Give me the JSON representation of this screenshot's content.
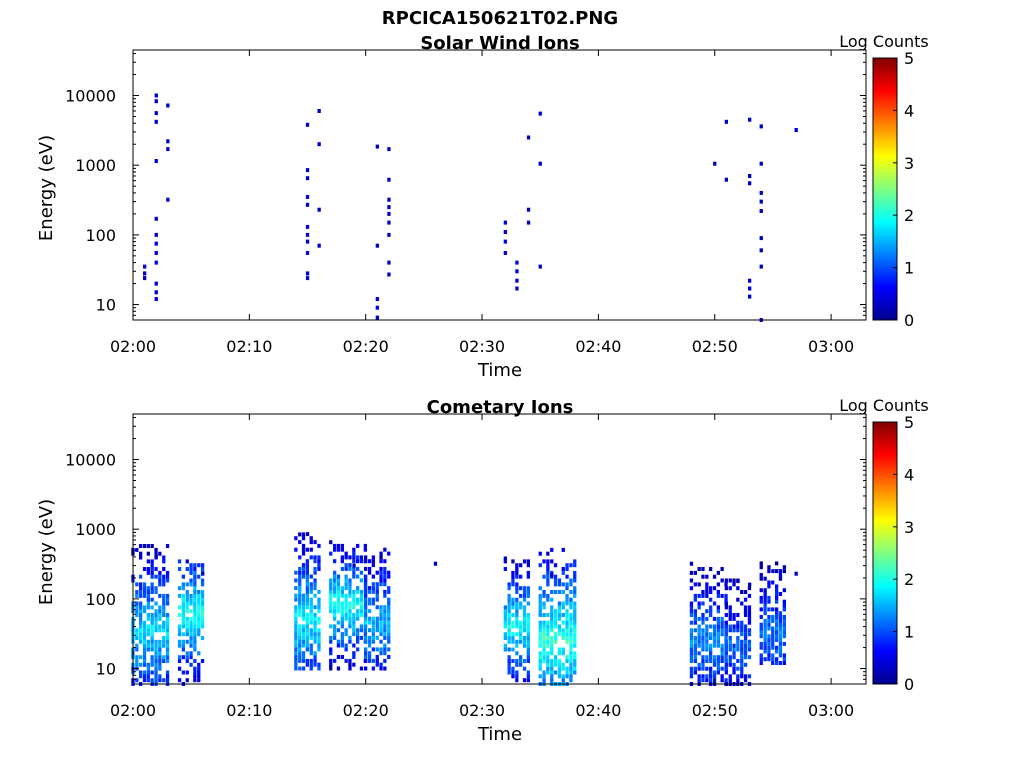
{
  "page": {
    "title": "RPCICA150621T02.PNG"
  },
  "colors": {
    "colormap": [
      "#00008f",
      "#0000ff",
      "#0080ff",
      "#00ffff",
      "#80ff80",
      "#ffff00",
      "#ff8000",
      "#ff0000",
      "#800000"
    ],
    "axis": "#000000",
    "background": "#ffffff"
  },
  "chart_data": [
    {
      "type": "heatmap",
      "title": "Solar Wind Ions",
      "xlabel": "Time",
      "ylabel": "Energy (eV)",
      "xlim": [
        "02:00",
        "03:03"
      ],
      "xticks": [
        "02:00",
        "02:10",
        "02:20",
        "02:30",
        "02:40",
        "02:50",
        "03:00"
      ],
      "ylim": [
        6,
        45000
      ],
      "yscale": "log",
      "yticks": [
        10,
        100,
        1000,
        10000
      ],
      "yticklabels": [
        "10",
        "100",
        "1000",
        "10000"
      ],
      "colorbar": {
        "label": "Log Counts",
        "range": [
          0,
          5
        ],
        "ticks": [
          "0",
          "1",
          "2",
          "3",
          "4",
          "5"
        ]
      },
      "grid": false,
      "cells": [
        [
          "02:01",
          35,
          0.4
        ],
        [
          "02:01",
          28,
          0.3
        ],
        [
          "02:01",
          24,
          0.3
        ],
        [
          "02:02",
          12,
          0.4
        ],
        [
          "02:02",
          15,
          0.3
        ],
        [
          "02:02",
          20,
          0.3
        ],
        [
          "02:02",
          40,
          0.5
        ],
        [
          "02:02",
          55,
          0.4
        ],
        [
          "02:02",
          75,
          0.4
        ],
        [
          "02:02",
          100,
          0.3
        ],
        [
          "02:02",
          170,
          0.3
        ],
        [
          "02:02",
          1150,
          0.4
        ],
        [
          "02:02",
          5600,
          0.3
        ],
        [
          "02:02",
          10000,
          0.3
        ],
        [
          "02:02",
          4200,
          0.3
        ],
        [
          "02:02",
          8300,
          0.3
        ],
        [
          "02:03",
          7200,
          0.3
        ],
        [
          "02:03",
          2200,
          0.3
        ],
        [
          "02:03",
          1700,
          0.3
        ],
        [
          "02:03",
          320,
          0.3
        ],
        [
          "02:15",
          3800,
          0.3
        ],
        [
          "02:15",
          650,
          0.3
        ],
        [
          "02:15",
          850,
          0.3
        ],
        [
          "02:15",
          350,
          0.4
        ],
        [
          "02:15",
          270,
          0.3
        ],
        [
          "02:15",
          130,
          0.4
        ],
        [
          "02:15",
          100,
          0.5
        ],
        [
          "02:15",
          80,
          0.4
        ],
        [
          "02:15",
          55,
          0.4
        ],
        [
          "02:15",
          28,
          0.3
        ],
        [
          "02:15",
          24,
          0.3
        ],
        [
          "02:16",
          6000,
          0.3
        ],
        [
          "02:16",
          2000,
          0.3
        ],
        [
          "02:16",
          230,
          0.3
        ],
        [
          "02:16",
          70,
          0.3
        ],
        [
          "02:21",
          1850,
          0.3
        ],
        [
          "02:21",
          70,
          0.3
        ],
        [
          "02:21",
          12,
          0.4
        ],
        [
          "02:21",
          9,
          0.4
        ],
        [
          "02:21",
          6.5,
          0.4
        ],
        [
          "02:22",
          320,
          0.3
        ],
        [
          "02:22",
          250,
          0.3
        ],
        [
          "02:22",
          150,
          0.3
        ],
        [
          "02:22",
          40,
          0.3
        ],
        [
          "02:22",
          27,
          0.3
        ],
        [
          "02:22",
          1700,
          0.3
        ],
        [
          "02:22",
          620,
          0.3
        ],
        [
          "02:22",
          200,
          0.3
        ],
        [
          "02:22",
          100,
          0.3
        ],
        [
          "02:32",
          150,
          0.4
        ],
        [
          "02:32",
          110,
          0.4
        ],
        [
          "02:32",
          80,
          0.5
        ],
        [
          "02:32",
          55,
          0.5
        ],
        [
          "02:33",
          40,
          0.5
        ],
        [
          "02:33",
          30,
          0.5
        ],
        [
          "02:33",
          22,
          0.4
        ],
        [
          "02:33",
          17,
          0.4
        ],
        [
          "02:34",
          230,
          0.3
        ],
        [
          "02:34",
          150,
          0.3
        ],
        [
          "02:34",
          2500,
          0.3
        ],
        [
          "02:35",
          5500,
          0.3
        ],
        [
          "02:35",
          1050,
          0.3
        ],
        [
          "02:35",
          35,
          0.3
        ],
        [
          "02:50",
          1050,
          0.3
        ],
        [
          "02:51",
          4200,
          0.3
        ],
        [
          "02:51",
          620,
          0.3
        ],
        [
          "02:53",
          4500,
          0.3
        ],
        [
          "02:53",
          700,
          0.3
        ],
        [
          "02:53",
          550,
          0.3
        ],
        [
          "02:53",
          17,
          0.4
        ],
        [
          "02:53",
          13,
          0.4
        ],
        [
          "02:53",
          22,
          0.3
        ],
        [
          "02:54",
          3600,
          0.3
        ],
        [
          "02:54",
          1050,
          0.3
        ],
        [
          "02:54",
          400,
          0.3
        ],
        [
          "02:54",
          300,
          0.3
        ],
        [
          "02:54",
          220,
          0.3
        ],
        [
          "02:54",
          90,
          0.3
        ],
        [
          "02:54",
          60,
          0.3
        ],
        [
          "02:54",
          35,
          0.3
        ],
        [
          "02:54",
          6,
          0.3
        ],
        [
          "02:57",
          3200,
          0.3
        ]
      ]
    },
    {
      "type": "heatmap",
      "title": "Cometary Ions",
      "xlabel": "Time",
      "ylabel": "Energy (eV)",
      "xlim": [
        "02:00",
        "03:03"
      ],
      "xticks": [
        "02:00",
        "02:10",
        "02:20",
        "02:30",
        "02:40",
        "02:50",
        "03:00"
      ],
      "ylim": [
        6,
        45000
      ],
      "yscale": "log",
      "yticks": [
        10,
        100,
        1000,
        10000
      ],
      "yticklabels": [
        "10",
        "100",
        "1000",
        "10000"
      ],
      "colorbar": {
        "label": "Log Counts",
        "range": [
          0,
          5
        ],
        "ticks": [
          "0",
          "1",
          "2",
          "3",
          "4",
          "5"
        ]
      },
      "grid": false,
      "bursts": [
        {
          "t_start": "02:00",
          "t_end": "02:03",
          "e_min": 6,
          "e_max": 600,
          "peak": 1.7,
          "peak_e": 35
        },
        {
          "t_start": "02:04",
          "t_end": "02:06",
          "e_min": 6,
          "e_max": 350,
          "peak": 2.0,
          "peak_e": 60
        },
        {
          "t_start": "02:14",
          "t_end": "02:16",
          "e_min": 10,
          "e_max": 850,
          "peak": 1.8,
          "peak_e": 50
        },
        {
          "t_start": "02:17",
          "t_end": "02:20",
          "e_min": 10,
          "e_max": 650,
          "peak": 2.0,
          "peak_e": 80
        },
        {
          "t_start": "02:20",
          "t_end": "02:22",
          "e_min": 10,
          "e_max": 550,
          "peak": 1.5,
          "peak_e": 45
        },
        {
          "t_start": "02:32",
          "t_end": "02:34",
          "e_min": 6,
          "e_max": 350,
          "peak": 1.9,
          "peak_e": 40
        },
        {
          "t_start": "02:35",
          "t_end": "02:38",
          "e_min": 6,
          "e_max": 550,
          "peak": 2.1,
          "peak_e": 25
        },
        {
          "t_start": "02:48",
          "t_end": "02:51",
          "e_min": 6,
          "e_max": 300,
          "peak": 1.3,
          "peak_e": 25
        },
        {
          "t_start": "02:51",
          "t_end": "02:53",
          "e_min": 6,
          "e_max": 200,
          "peak": 1.1,
          "peak_e": 20
        },
        {
          "t_start": "02:54",
          "t_end": "02:56",
          "e_min": 12,
          "e_max": 350,
          "peak": 1.2,
          "peak_e": 30
        }
      ],
      "isolated": [
        [
          "02:02",
          400,
          0.3
        ],
        [
          "02:06",
          230,
          0.3
        ],
        [
          "02:15",
          850,
          0.3
        ],
        [
          "02:17",
          650,
          0.3
        ],
        [
          "02:19",
          300,
          0.3
        ],
        [
          "02:26",
          320,
          0.0
        ],
        [
          "02:32",
          380,
          0.3
        ],
        [
          "02:36",
          220,
          0.3
        ],
        [
          "02:48",
          320,
          0.3
        ],
        [
          "02:52",
          180,
          0.3
        ],
        [
          "02:53",
          160,
          0.3
        ],
        [
          "02:55",
          250,
          0.3
        ],
        [
          "02:57",
          230,
          0.3
        ]
      ]
    }
  ]
}
